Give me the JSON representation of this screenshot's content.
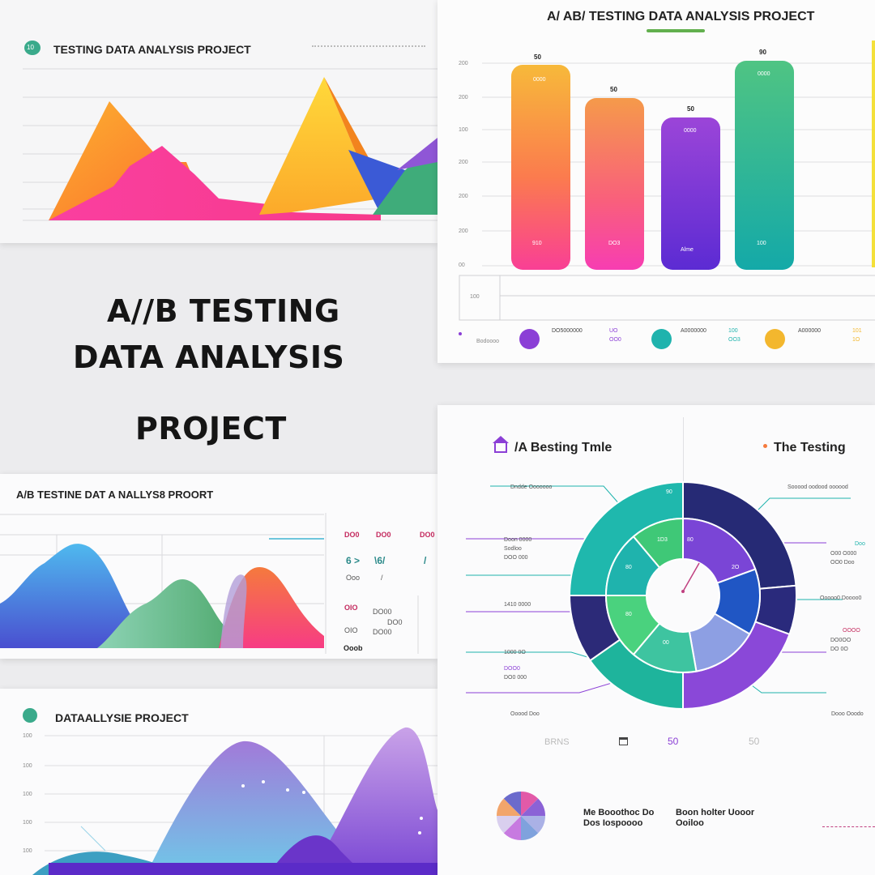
{
  "panel_top_left": {
    "title": "TESTING DATA ANALYSIS PROJECT",
    "badge": "10"
  },
  "headline": {
    "line1": "A//B TESTING",
    "line2": "DATA ANALYSIS",
    "line3": "PROJECT"
  },
  "panel_bar": {
    "title": "A/ AB/ TESTING DATA ANALYSIS PROJECT",
    "bar_labels": [
      "50",
      "50",
      "50",
      "90"
    ],
    "bar_inner_top": [
      "0000",
      "",
      "0000",
      "0000"
    ],
    "bar_inner_bottom": [
      "910",
      "DO3",
      "Alme",
      "100"
    ],
    "legend": [
      {
        "label": "DO5000000",
        "value": "UO",
        "sub": "OO0"
      },
      {
        "label": "A0000000",
        "value": "100",
        "sub": "OO3"
      },
      {
        "label": "A000000",
        "value": "101",
        "sub": "1O"
      }
    ],
    "colors": [
      "#8b3fd6",
      "#1fb3ad",
      "#f3b72e"
    ]
  },
  "panel_area_mid": {
    "title": "A/B TESTINE DAT A NALLYS8 PROORT",
    "side_values": [
      "DO0",
      "DO0",
      "DO0"
    ],
    "side_row2": [
      "6 >",
      "\\6/",
      "/"
    ],
    "side_row3": [
      "Ooo",
      "/"
    ],
    "side_row4": [
      "OIO",
      "DO00",
      "DO0"
    ],
    "side_row5": [
      "OIO",
      "DO00"
    ],
    "side_row6": [
      "Ooob"
    ]
  },
  "panel_area_bottom": {
    "title": "DATAALLYSIE PROJECT"
  },
  "panel_donut": {
    "title_left": "/A Besting Tmle",
    "title_right": "The Testing",
    "labels_left": [
      "Dndde Ooooooo",
      "Doon 0000",
      "Sodloo",
      "DOO 000",
      "1410 0000",
      "1000 0O",
      "DOO0",
      "DO0 000",
      "Ooood Doo"
    ],
    "labels_right": [
      "Sooood oodood oooood",
      "Doo",
      "O00 O000",
      "OO0 Doo",
      "Ooooo0 Doooo0",
      "OOOO",
      "DO0OO",
      "DO 0O",
      "Dooo Ooodo"
    ],
    "ring_labels": [
      "90",
      "1D3",
      "80",
      "80",
      "00",
      "80",
      "2O"
    ],
    "footer": [
      "BRNS",
      "50",
      "50"
    ],
    "bottom_left": [
      "Me Booothoc Do",
      "Dos Iospoooo"
    ],
    "bottom_right": [
      "Boon holter Uooor",
      "Ooiloo"
    ]
  }
}
